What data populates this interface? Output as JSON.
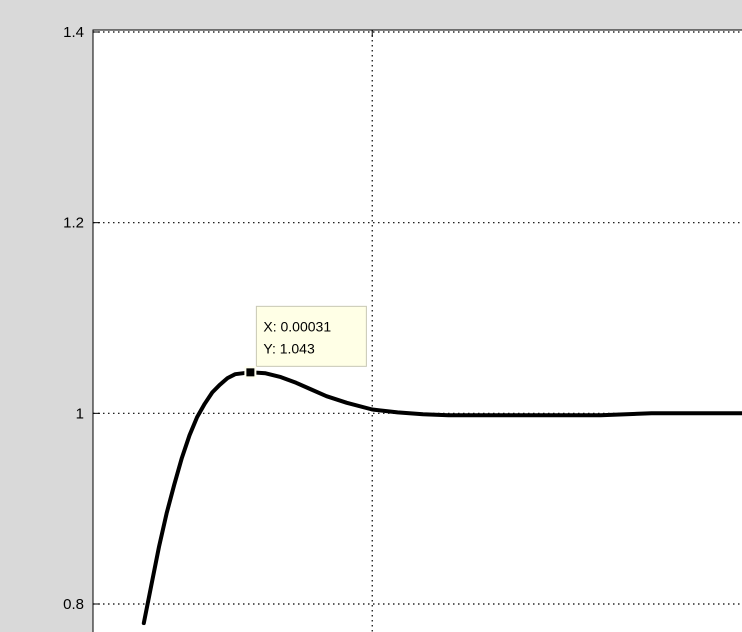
{
  "figure": {
    "background": "#d9d9d9"
  },
  "chart_data": {
    "type": "line",
    "title": "",
    "xlabel": "",
    "ylabel": "",
    "ylim": [
      0.78,
      1.4
    ],
    "xlim": [
      0.0,
      0.0013
    ],
    "grid": true,
    "y_ticks": [
      {
        "value": 0.8,
        "label": "0.8"
      },
      {
        "value": 1.0,
        "label": "1"
      },
      {
        "value": 1.2,
        "label": "1.2"
      },
      {
        "value": 1.4,
        "label": "1.4"
      }
    ],
    "x_grid_values": [
      0.00055
    ],
    "series": [
      {
        "name": "",
        "color": "#000000",
        "x": [
          0.0001,
          0.000115,
          0.00013,
          0.000145,
          0.00016,
          0.000175,
          0.00019,
          0.000205,
          0.00022,
          0.000235,
          0.00025,
          0.000265,
          0.00028,
          0.00031,
          0.00034,
          0.00037,
          0.0004,
          0.00043,
          0.00046,
          0.0005,
          0.00055,
          0.0006,
          0.00065,
          0.0007,
          0.0008,
          0.0009,
          0.001,
          0.0011,
          0.0012,
          0.0013
        ],
        "y": [
          0.78,
          0.82,
          0.86,
          0.895,
          0.925,
          0.953,
          0.977,
          0.996,
          1.01,
          1.022,
          1.03,
          1.037,
          1.041,
          1.043,
          1.042,
          1.038,
          1.032,
          1.025,
          1.018,
          1.011,
          1.004,
          1.001,
          0.999,
          0.998,
          0.998,
          0.998,
          0.998,
          1.0,
          1.0,
          1.0
        ]
      }
    ],
    "datatip": {
      "x": 0.00031,
      "y": 1.043,
      "x_text": "X: 0.00031",
      "y_text": "Y: 1.043"
    }
  }
}
